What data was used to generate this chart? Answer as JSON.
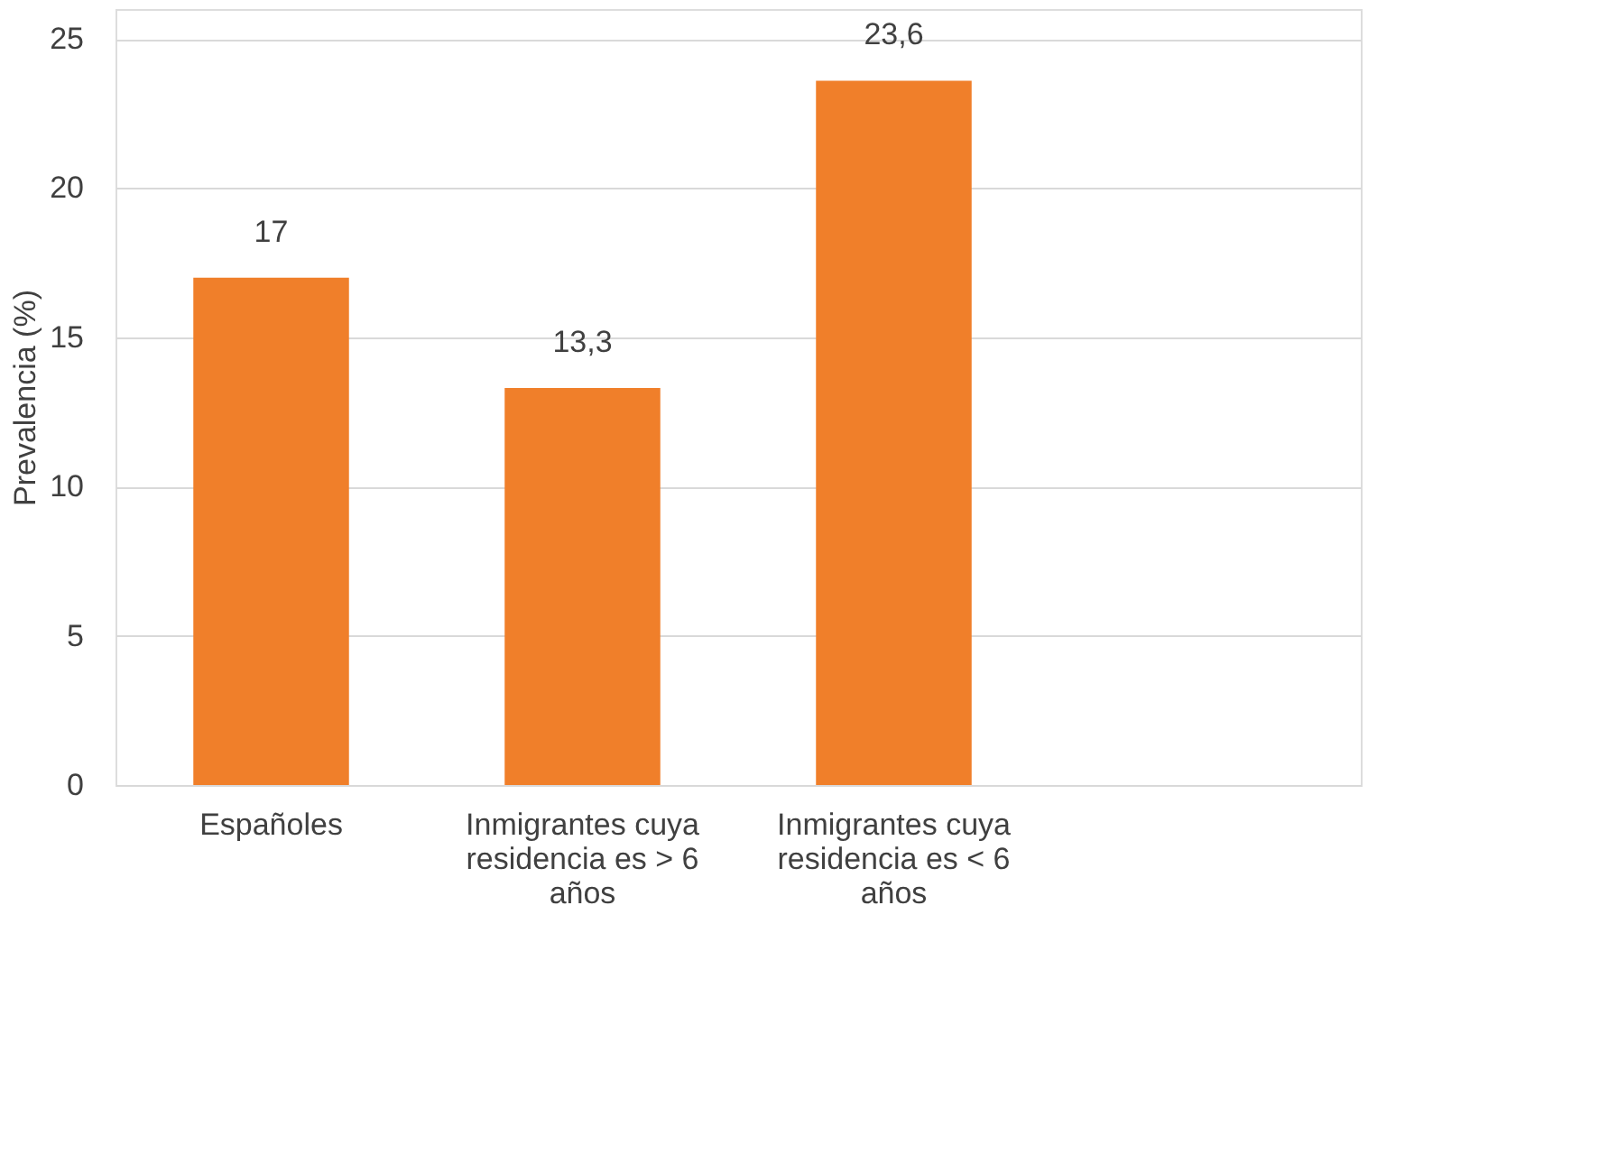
{
  "chart_data": {
    "type": "bar",
    "ylabel": "Prevalencia (%)",
    "categories": [
      "Españoles",
      "Inmigrantes cuya residencia es > 6 años",
      "Inmigrantes cuya residencia es < 6 años",
      null
    ],
    "values": [
      17,
      13.3,
      23.6,
      null
    ],
    "value_labels": [
      "17",
      "13,3",
      "23,6",
      null
    ],
    "color": "#f07f2a",
    "ylim": [
      0,
      26
    ],
    "yticks": [
      0,
      5,
      10,
      15,
      20,
      25
    ],
    "grid": "y"
  }
}
